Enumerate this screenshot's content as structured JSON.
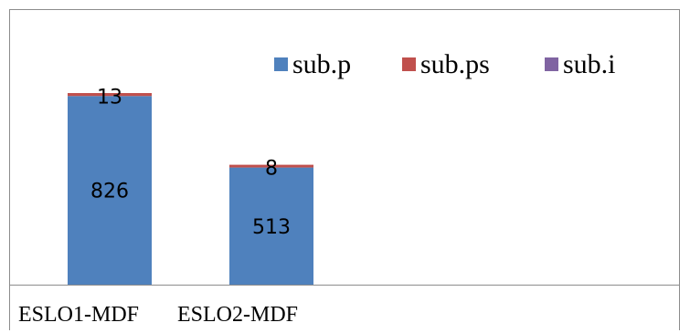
{
  "chart_data": {
    "type": "bar",
    "stacked": true,
    "categories": [
      "ESLO1-MDF",
      "ESLO2-MDF"
    ],
    "series": [
      {
        "name": "sub.p",
        "values": [
          826,
          513
        ],
        "color": "#4f81bd"
      },
      {
        "name": "sub.ps",
        "values": [
          13,
          8
        ],
        "color": "#c0504d"
      },
      {
        "name": "sub.i",
        "values": [
          0,
          0
        ],
        "color": "#8064a2"
      }
    ],
    "data_labels": [
      {
        "series": "sub.p",
        "values": [
          "826",
          "513"
        ]
      },
      {
        "series": "sub.ps",
        "values": [
          "13",
          "8"
        ]
      }
    ],
    "legend_position": "top-right",
    "gridlines": false,
    "ylim": [
      0,
      1000
    ]
  }
}
